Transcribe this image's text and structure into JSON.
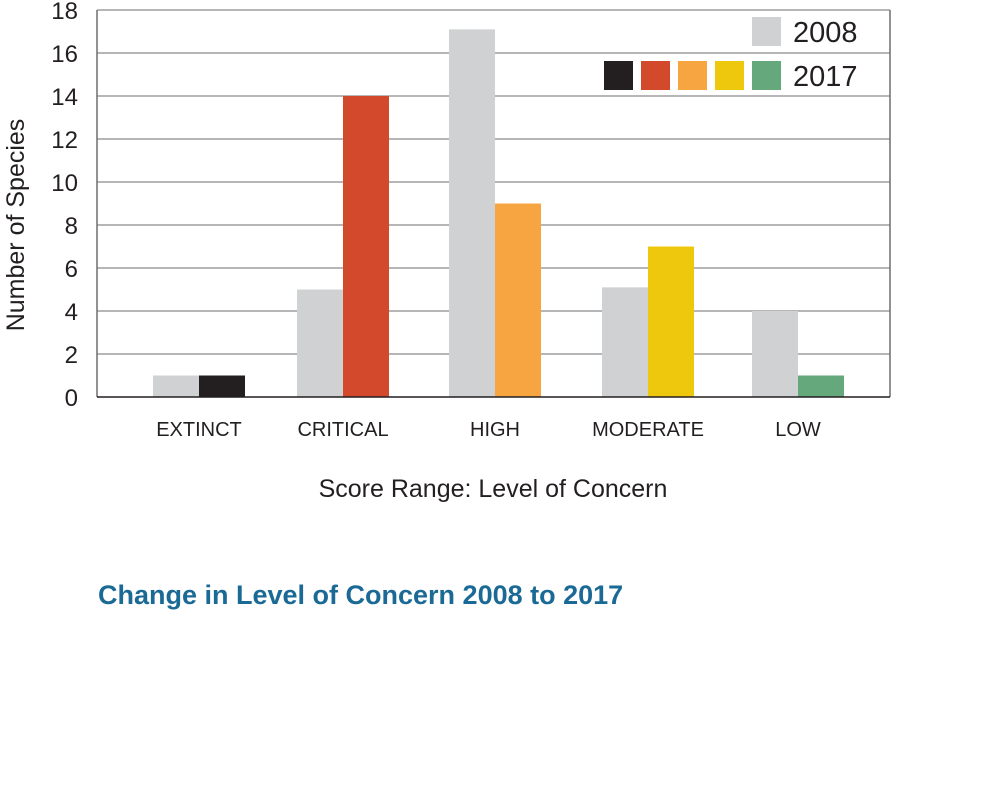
{
  "caption": "Change in Level of Concern 2008 to 2017",
  "chart_data": {
    "type": "bar",
    "title": "",
    "xlabel": "Score Range: Level of Concern",
    "ylabel": "Number of Species",
    "ylim": [
      0,
      18
    ],
    "yticks": [
      0,
      2,
      4,
      6,
      8,
      10,
      12,
      14,
      16,
      18
    ],
    "grid": true,
    "legend_position": "top-right",
    "categories": [
      "EXTINCT",
      "CRITICAL",
      "HIGH",
      "MODERATE",
      "LOW"
    ],
    "series": [
      {
        "name": "2008",
        "values": [
          1,
          5,
          17.1,
          5.1,
          4
        ],
        "colors": [
          "#d0d1d3",
          "#d0d1d3",
          "#d0d1d3",
          "#d0d1d3",
          "#d0d1d3"
        ]
      },
      {
        "name": "2017",
        "values": [
          1,
          14,
          9,
          7,
          1
        ],
        "colors": [
          "#231f20",
          "#d2492b",
          "#f7a541",
          "#edc80c",
          "#65a87c"
        ]
      }
    ]
  }
}
